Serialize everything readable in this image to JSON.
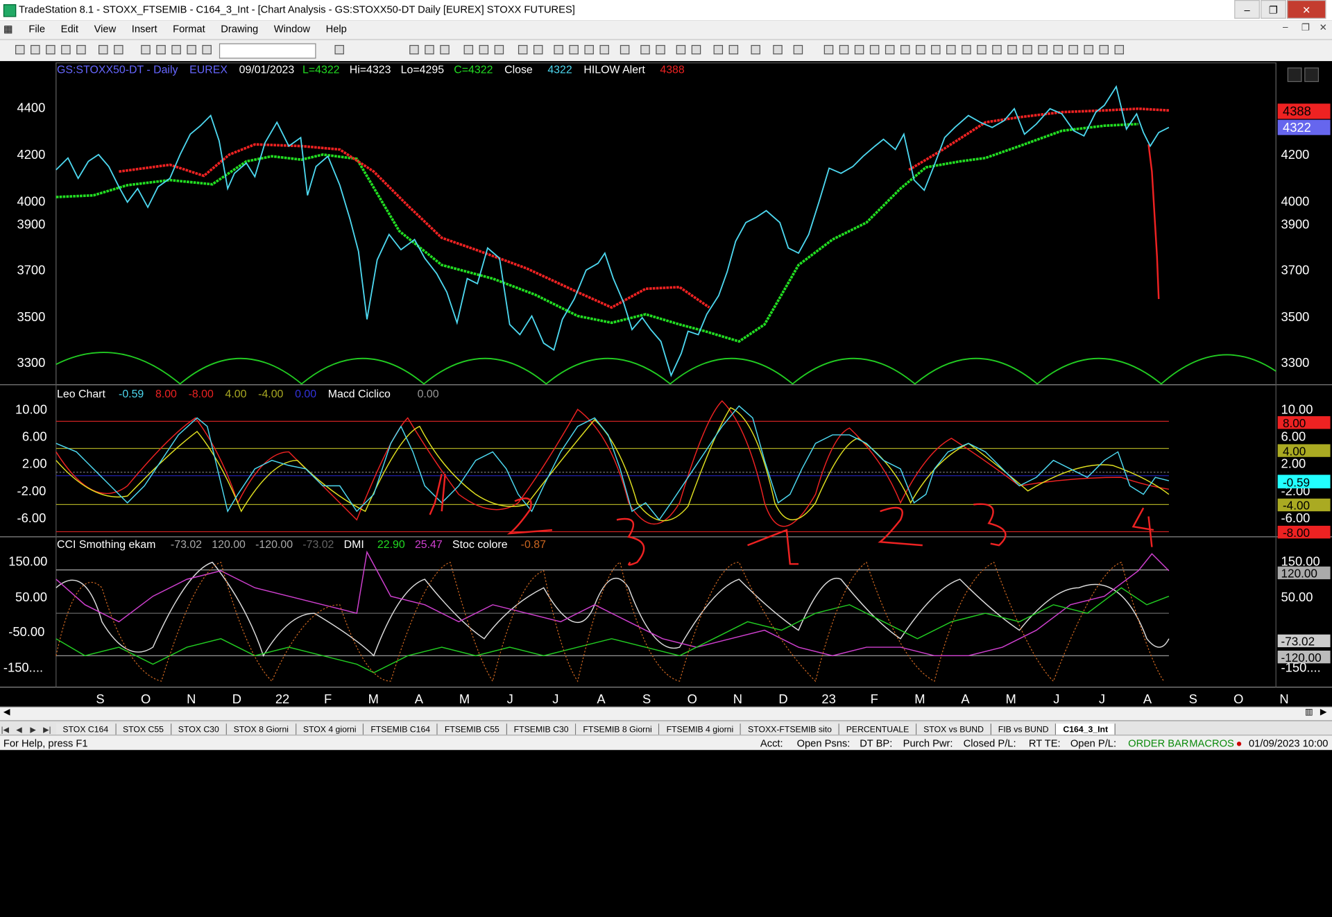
{
  "window": {
    "title": "TradeStation 8.1 - STOXX_FTSEMIB - C164_3_Int - [Chart Analysis - GS:STOXX50-DT  Daily  [EUREX] STOXX FUTURES]"
  },
  "menu": [
    "File",
    "Edit",
    "View",
    "Insert",
    "Format",
    "Drawing",
    "Window",
    "Help"
  ],
  "price_pane": {
    "symbol": "GS:STOXX50-DT - Daily",
    "exchange": "EUREX",
    "date": "09/01/2023",
    "low": "L=4322",
    "high": "Hi=4323",
    "lo": "Lo=4295",
    "close": "C=4322",
    "close_label": "Close",
    "close_value": "4322",
    "alert_label": "HILOW Alert",
    "alert_value": "4388",
    "axis_ticks": [
      "4400",
      "4200",
      "4000",
      "3900",
      "3700",
      "3500",
      "3300"
    ],
    "badge_red": "4388",
    "badge_blue": "4322"
  },
  "osc_pane": {
    "title": "Leo Chart",
    "v1": "-0.59",
    "v2": "8.00",
    "v3": "-8.00",
    "v4": "4.00",
    "v5": "-4.00",
    "v6": "0.00",
    "macd_label": "Macd Ciclico",
    "macd_value": "0.00",
    "axis_ticks": [
      "10.00",
      "6.00",
      "2.00",
      "-2.00",
      "-6.00"
    ],
    "badges": [
      "8.00",
      "4.00",
      "-0.59",
      "-4.00",
      "-8.00"
    ]
  },
  "cci_pane": {
    "title": "CCI Smothing ekam",
    "v1": "-73.02",
    "v2": "120.00",
    "v3": "-120.00",
    "v4": "-73.02",
    "dmi_label": "DMI",
    "dmi1": "22.90",
    "dmi2": "25.47",
    "stoc_label": "Stoc colore",
    "stoc_value": "-0.87",
    "axis_ticks": [
      "150.00",
      "50.00",
      "-50.00",
      "-150...."
    ],
    "badges": [
      "120.00",
      "-73.02",
      "-120.00"
    ]
  },
  "annotations": [
    "1",
    "2",
    "3",
    "1",
    "2",
    "3",
    "4"
  ],
  "time_axis": [
    "S",
    "O",
    "N",
    "D",
    "22",
    "F",
    "M",
    "A",
    "M",
    "J",
    "J",
    "A",
    "S",
    "O",
    "N",
    "D",
    "23",
    "F",
    "M",
    "A",
    "M",
    "J",
    "J",
    "A",
    "S",
    "O",
    "N"
  ],
  "tabs": [
    "STOX C164",
    "STOX C55",
    "STOX  C30",
    "STOX  8 Giorni",
    "STOX 4 giorni",
    "FTSEMIB C164",
    "FTSEMIB C55",
    "FTSEMIB C30",
    "FTSEMIB  8 Giorni",
    "FTSEMIB  4 giorni",
    "STOXX-FTSEMIB sito",
    "PERCENTUALE",
    "STOX vs BUND",
    "FIB vs BUND",
    "C164_3_Int"
  ],
  "status": {
    "help": "For Help, press F1",
    "acct": "Acct:",
    "open_psns": "Open Psns:",
    "dt_bp": "DT BP:",
    "purch_pwr": "Purch Pwr:",
    "closed_pl": "Closed P/L:",
    "rt_te": "RT TE:",
    "open_pl": "Open P/L:",
    "order_bar": "ORDER BAR",
    "macros": "MACROS",
    "datetime": "01/09/2023 10:00"
  },
  "colors": {
    "price": "#4dd8f0",
    "avg_green": "#22dd22",
    "avg_red": "#ee2222",
    "yellow": "#e0e020",
    "magenta": "#d040d0",
    "bg": "#000000"
  }
}
